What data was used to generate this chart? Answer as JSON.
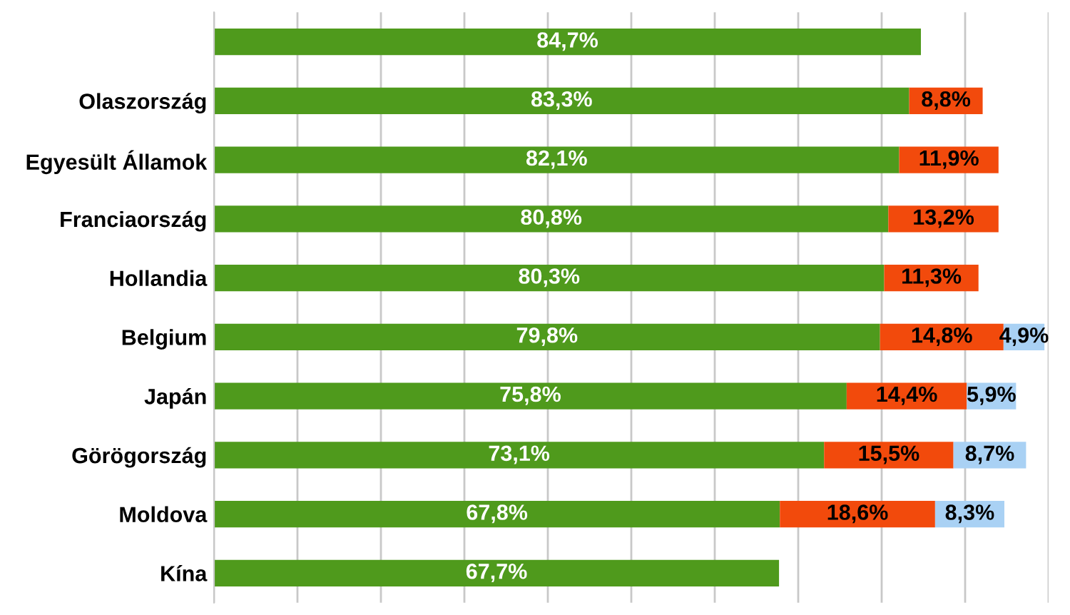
{
  "chart_data": {
    "type": "bar",
    "orientation": "horizontal",
    "stacked": true,
    "categories": [
      null,
      "Olaszország",
      "Egyesült Államok",
      "Franciaország",
      "Hollandia",
      "Belgium",
      "Japán",
      "Görögország",
      "Moldova",
      "Kína"
    ],
    "series": [
      {
        "color": "#4f9a1c",
        "values": [
          84.7,
          83.3,
          82.1,
          80.8,
          80.3,
          79.8,
          75.8,
          73.1,
          67.8,
          67.7
        ],
        "value_labels": [
          "84,7%",
          "83,3%",
          "82,1%",
          "80,8%",
          "80,3%",
          "79,8%",
          "75,8%",
          "73,1%",
          "67,8%",
          "67,7%"
        ]
      },
      {
        "color": "#f24a0c",
        "values": [
          null,
          8.8,
          11.9,
          13.2,
          11.3,
          14.8,
          14.4,
          15.5,
          18.6,
          null
        ],
        "value_labels": [
          null,
          "8,8%",
          "11,9%",
          "13,2%",
          "11,3%",
          "14,8%",
          "14,4%",
          "15,5%",
          "18,6%",
          null
        ]
      },
      {
        "color": "#a9d1f4",
        "values": [
          null,
          null,
          null,
          null,
          null,
          4.9,
          5.9,
          8.7,
          8.3,
          null
        ],
        "value_labels": [
          null,
          null,
          null,
          null,
          null,
          "4,9%",
          "5,9%",
          "8,7%",
          "8,3%",
          null
        ]
      }
    ],
    "xlim": [
      0,
      100
    ],
    "xticks": [
      {
        "value": 0,
        "label": null
      },
      {
        "value": 10,
        "label": null
      },
      {
        "value": 20,
        "label": null
      },
      {
        "value": 30,
        "label": null
      },
      {
        "value": 40,
        "label": null
      },
      {
        "value": 50,
        "label": null
      },
      {
        "value": 60,
        "label": null
      },
      {
        "value": 70,
        "label": null
      },
      {
        "value": 80,
        "label": null
      },
      {
        "value": 90,
        "label": null
      },
      {
        "value": 100,
        "label": null
      }
    ],
    "grid": "x",
    "tick_labels": "y"
  }
}
